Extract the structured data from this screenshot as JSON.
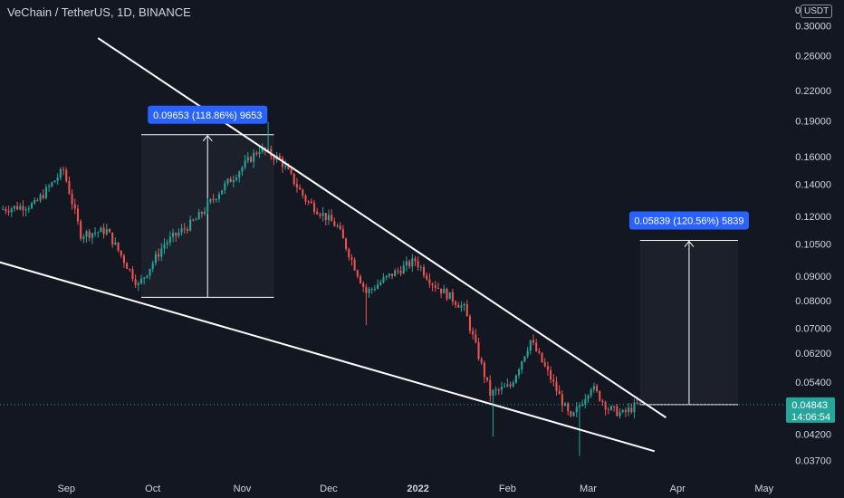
{
  "title": "VeChain / TetherUS, 1D, BINANCE",
  "currency_label": "USDT",
  "currency_prefix": "0",
  "colors": {
    "background": "#131722",
    "up": "#26a69a",
    "down": "#ef5350",
    "trendline": "#ffffff",
    "label_box": "#2962ff",
    "price_tag": "#26a69a",
    "text": "#d1d4dc"
  },
  "chart_data": {
    "type": "candlestick",
    "scale": "log",
    "ylim": [
      0.034,
      0.34
    ],
    "y_ticks": [
      "0.30000",
      "0.26000",
      "0.22000",
      "0.19000",
      "0.16000",
      "0.14000",
      "0.12000",
      "0.10500",
      "0.09000",
      "0.08000",
      "0.07000",
      "0.06200",
      "0.05400",
      "0.04200",
      "0.03700"
    ],
    "x_ticks": [
      "Sep",
      "Oct",
      "Nov",
      "Dec",
      "2022",
      "Feb",
      "Mar",
      "Apr",
      "May"
    ],
    "x_tick_dates": [
      "2021-09-01",
      "2021-10-01",
      "2021-11-01",
      "2021-12-01",
      "2022-01-01",
      "2022-02-01",
      "2022-03-01",
      "2022-04-01",
      "2022-05-01"
    ],
    "x_range": [
      "2021-08-09",
      "2022-05-08"
    ],
    "last_price": {
      "value": "0.04843",
      "countdown": "14:06:54"
    },
    "measurements": [
      {
        "label": "0.09653 (118.86%) 9653",
        "from_price": 0.0812,
        "to_price": 0.1777,
        "start_date": "2021-09-27",
        "end_date": "2021-11-12"
      },
      {
        "label": "0.05839 (120.56%) 5839",
        "from_price": 0.04843,
        "to_price": 0.1068,
        "start_date": "2022-03-19",
        "end_date": "2022-04-22"
      }
    ],
    "trendlines": [
      {
        "name": "upper",
        "points": [
          [
            "2021-09-12",
            0.283
          ],
          [
            "2022-03-28",
            0.0455
          ]
        ]
      },
      {
        "name": "lower",
        "points": [
          [
            "2021-08-08",
            0.0965
          ],
          [
            "2022-03-24",
            0.0387
          ]
        ]
      }
    ],
    "anchors": [
      [
        "2021-08-10",
        0.124
      ],
      [
        "2021-08-22",
        0.127
      ],
      [
        "2021-09-01",
        0.15
      ],
      [
        "2021-09-07",
        0.11
      ],
      [
        "2021-09-16",
        0.112
      ],
      [
        "2021-09-27",
        0.086
      ],
      [
        "2021-10-06",
        0.105
      ],
      [
        "2021-10-17",
        0.118
      ],
      [
        "2021-10-25",
        0.135
      ],
      [
        "2021-11-08",
        0.166
      ],
      [
        "2021-11-15",
        0.158
      ],
      [
        "2021-11-24",
        0.13
      ],
      [
        "2021-12-05",
        0.114
      ],
      [
        "2021-12-15",
        0.083
      ],
      [
        "2021-12-23",
        0.09
      ],
      [
        "2022-01-01",
        0.097
      ],
      [
        "2022-01-07",
        0.087
      ],
      [
        "2022-01-18",
        0.077
      ],
      [
        "2022-01-27",
        0.051
      ],
      [
        "2022-02-03",
        0.053
      ],
      [
        "2022-02-10",
        0.066
      ],
      [
        "2022-02-17",
        0.055
      ],
      [
        "2022-02-24",
        0.045
      ],
      [
        "2022-03-03",
        0.053
      ],
      [
        "2022-03-09",
        0.0475
      ],
      [
        "2022-03-14",
        0.0463
      ],
      [
        "2022-03-19",
        0.0484
      ]
    ],
    "wicks": [
      {
        "date": "2021-11-10",
        "high": 0.189
      },
      {
        "date": "2021-12-14",
        "low": 0.071
      },
      {
        "date": "2022-01-27",
        "low": 0.0415
      },
      {
        "date": "2022-02-26",
        "low": 0.0378
      }
    ]
  }
}
